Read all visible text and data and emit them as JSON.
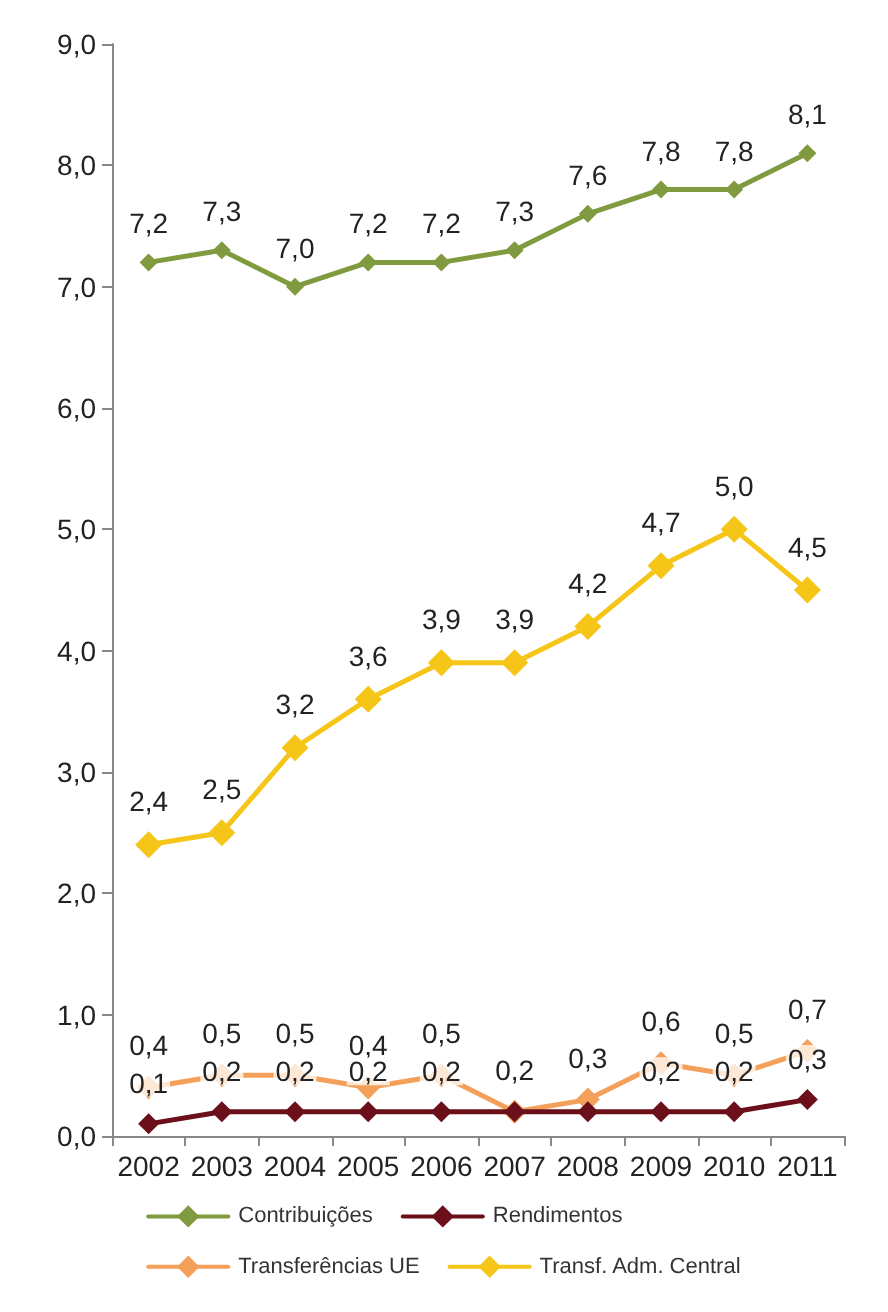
{
  "chart_data": {
    "type": "line",
    "categories": [
      "2002",
      "2003",
      "2004",
      "2005",
      "2006",
      "2007",
      "2008",
      "2009",
      "2010",
      "2011"
    ],
    "ylim": [
      0,
      9
    ],
    "yticks": [
      {
        "value": 0,
        "label": "0,0"
      },
      {
        "value": 1,
        "label": "1,0"
      },
      {
        "value": 2,
        "label": "2,0"
      },
      {
        "value": 3,
        "label": "3,0"
      },
      {
        "value": 4,
        "label": "4,0"
      },
      {
        "value": 5,
        "label": "5,0"
      },
      {
        "value": 6,
        "label": "6,0"
      },
      {
        "value": 7,
        "label": "7,0"
      },
      {
        "value": 8,
        "label": "8,0"
      },
      {
        "value": 9,
        "label": "9,0"
      }
    ],
    "grid": false,
    "legend": "bottom",
    "marker": "diamond",
    "line_style": "solid",
    "series": [
      {
        "name": "Contribuições",
        "color": "#7f9a3f",
        "values": [
          7.2,
          7.3,
          7.0,
          7.2,
          7.2,
          7.3,
          7.6,
          7.8,
          7.8,
          8.1
        ],
        "value_labels": [
          "7,2",
          "7,3",
          "7,0",
          "7,2",
          "7,2",
          "7,3",
          "7,6",
          "7,8",
          "7,8",
          "8,1"
        ]
      },
      {
        "name": "Rendimentos",
        "color": "#6b0f1a",
        "values": [
          0.1,
          0.2,
          0.2,
          0.2,
          0.2,
          0.2,
          0.2,
          0.2,
          0.2,
          0.3
        ],
        "value_labels": [
          "0,1",
          "0,2",
          "0,2",
          "0,2",
          "0,2",
          null,
          null,
          "0,2",
          "0,2",
          "0,3"
        ]
      },
      {
        "name": "Transferências UE",
        "color": "#f5a05a",
        "values": [
          0.4,
          0.5,
          0.5,
          0.4,
          0.5,
          0.2,
          0.3,
          0.6,
          0.5,
          0.7
        ],
        "value_labels": [
          "0,4",
          "0,5",
          "0,5",
          "0,4",
          "0,5",
          "0,2",
          "0,3",
          "0,6",
          "0,5",
          "0,7"
        ]
      },
      {
        "name": "Transf. Adm. Central",
        "color": "#f5c518",
        "values": [
          2.4,
          2.5,
          3.2,
          3.6,
          3.9,
          3.9,
          4.2,
          4.7,
          5.0,
          4.5
        ],
        "value_labels": [
          "2,4",
          "2,5",
          "3,2",
          "3,6",
          "3,9",
          "3,9",
          "4,2",
          "4,7",
          "5,0",
          "4,5"
        ]
      }
    ]
  }
}
